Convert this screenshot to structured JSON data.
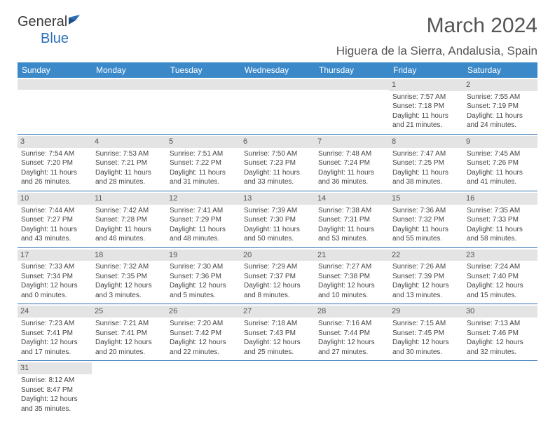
{
  "logo": {
    "text1": "General",
    "text2": "Blue"
  },
  "title": "March 2024",
  "location": "Higuera de la Sierra, Andalusia, Spain",
  "colors": {
    "header_bg": "#3b89c9",
    "header_text": "#ffffff",
    "daynum_bg": "#e4e4e4",
    "border": "#2d6fb5",
    "text": "#444444",
    "logo_blue": "#2d6fb5"
  },
  "day_headers": [
    "Sunday",
    "Monday",
    "Tuesday",
    "Wednesday",
    "Thursday",
    "Friday",
    "Saturday"
  ],
  "weeks": [
    [
      null,
      null,
      null,
      null,
      null,
      {
        "n": "1",
        "l1": "Sunrise: 7:57 AM",
        "l2": "Sunset: 7:18 PM",
        "l3": "Daylight: 11 hours",
        "l4": "and 21 minutes."
      },
      {
        "n": "2",
        "l1": "Sunrise: 7:55 AM",
        "l2": "Sunset: 7:19 PM",
        "l3": "Daylight: 11 hours",
        "l4": "and 24 minutes."
      }
    ],
    [
      {
        "n": "3",
        "l1": "Sunrise: 7:54 AM",
        "l2": "Sunset: 7:20 PM",
        "l3": "Daylight: 11 hours",
        "l4": "and 26 minutes."
      },
      {
        "n": "4",
        "l1": "Sunrise: 7:53 AM",
        "l2": "Sunset: 7:21 PM",
        "l3": "Daylight: 11 hours",
        "l4": "and 28 minutes."
      },
      {
        "n": "5",
        "l1": "Sunrise: 7:51 AM",
        "l2": "Sunset: 7:22 PM",
        "l3": "Daylight: 11 hours",
        "l4": "and 31 minutes."
      },
      {
        "n": "6",
        "l1": "Sunrise: 7:50 AM",
        "l2": "Sunset: 7:23 PM",
        "l3": "Daylight: 11 hours",
        "l4": "and 33 minutes."
      },
      {
        "n": "7",
        "l1": "Sunrise: 7:48 AM",
        "l2": "Sunset: 7:24 PM",
        "l3": "Daylight: 11 hours",
        "l4": "and 36 minutes."
      },
      {
        "n": "8",
        "l1": "Sunrise: 7:47 AM",
        "l2": "Sunset: 7:25 PM",
        "l3": "Daylight: 11 hours",
        "l4": "and 38 minutes."
      },
      {
        "n": "9",
        "l1": "Sunrise: 7:45 AM",
        "l2": "Sunset: 7:26 PM",
        "l3": "Daylight: 11 hours",
        "l4": "and 41 minutes."
      }
    ],
    [
      {
        "n": "10",
        "l1": "Sunrise: 7:44 AM",
        "l2": "Sunset: 7:27 PM",
        "l3": "Daylight: 11 hours",
        "l4": "and 43 minutes."
      },
      {
        "n": "11",
        "l1": "Sunrise: 7:42 AM",
        "l2": "Sunset: 7:28 PM",
        "l3": "Daylight: 11 hours",
        "l4": "and 46 minutes."
      },
      {
        "n": "12",
        "l1": "Sunrise: 7:41 AM",
        "l2": "Sunset: 7:29 PM",
        "l3": "Daylight: 11 hours",
        "l4": "and 48 minutes."
      },
      {
        "n": "13",
        "l1": "Sunrise: 7:39 AM",
        "l2": "Sunset: 7:30 PM",
        "l3": "Daylight: 11 hours",
        "l4": "and 50 minutes."
      },
      {
        "n": "14",
        "l1": "Sunrise: 7:38 AM",
        "l2": "Sunset: 7:31 PM",
        "l3": "Daylight: 11 hours",
        "l4": "and 53 minutes."
      },
      {
        "n": "15",
        "l1": "Sunrise: 7:36 AM",
        "l2": "Sunset: 7:32 PM",
        "l3": "Daylight: 11 hours",
        "l4": "and 55 minutes."
      },
      {
        "n": "16",
        "l1": "Sunrise: 7:35 AM",
        "l2": "Sunset: 7:33 PM",
        "l3": "Daylight: 11 hours",
        "l4": "and 58 minutes."
      }
    ],
    [
      {
        "n": "17",
        "l1": "Sunrise: 7:33 AM",
        "l2": "Sunset: 7:34 PM",
        "l3": "Daylight: 12 hours",
        "l4": "and 0 minutes."
      },
      {
        "n": "18",
        "l1": "Sunrise: 7:32 AM",
        "l2": "Sunset: 7:35 PM",
        "l3": "Daylight: 12 hours",
        "l4": "and 3 minutes."
      },
      {
        "n": "19",
        "l1": "Sunrise: 7:30 AM",
        "l2": "Sunset: 7:36 PM",
        "l3": "Daylight: 12 hours",
        "l4": "and 5 minutes."
      },
      {
        "n": "20",
        "l1": "Sunrise: 7:29 AM",
        "l2": "Sunset: 7:37 PM",
        "l3": "Daylight: 12 hours",
        "l4": "and 8 minutes."
      },
      {
        "n": "21",
        "l1": "Sunrise: 7:27 AM",
        "l2": "Sunset: 7:38 PM",
        "l3": "Daylight: 12 hours",
        "l4": "and 10 minutes."
      },
      {
        "n": "22",
        "l1": "Sunrise: 7:26 AM",
        "l2": "Sunset: 7:39 PM",
        "l3": "Daylight: 12 hours",
        "l4": "and 13 minutes."
      },
      {
        "n": "23",
        "l1": "Sunrise: 7:24 AM",
        "l2": "Sunset: 7:40 PM",
        "l3": "Daylight: 12 hours",
        "l4": "and 15 minutes."
      }
    ],
    [
      {
        "n": "24",
        "l1": "Sunrise: 7:23 AM",
        "l2": "Sunset: 7:41 PM",
        "l3": "Daylight: 12 hours",
        "l4": "and 17 minutes."
      },
      {
        "n": "25",
        "l1": "Sunrise: 7:21 AM",
        "l2": "Sunset: 7:41 PM",
        "l3": "Daylight: 12 hours",
        "l4": "and 20 minutes."
      },
      {
        "n": "26",
        "l1": "Sunrise: 7:20 AM",
        "l2": "Sunset: 7:42 PM",
        "l3": "Daylight: 12 hours",
        "l4": "and 22 minutes."
      },
      {
        "n": "27",
        "l1": "Sunrise: 7:18 AM",
        "l2": "Sunset: 7:43 PM",
        "l3": "Daylight: 12 hours",
        "l4": "and 25 minutes."
      },
      {
        "n": "28",
        "l1": "Sunrise: 7:16 AM",
        "l2": "Sunset: 7:44 PM",
        "l3": "Daylight: 12 hours",
        "l4": "and 27 minutes."
      },
      {
        "n": "29",
        "l1": "Sunrise: 7:15 AM",
        "l2": "Sunset: 7:45 PM",
        "l3": "Daylight: 12 hours",
        "l4": "and 30 minutes."
      },
      {
        "n": "30",
        "l1": "Sunrise: 7:13 AM",
        "l2": "Sunset: 7:46 PM",
        "l3": "Daylight: 12 hours",
        "l4": "and 32 minutes."
      }
    ],
    [
      {
        "n": "31",
        "l1": "Sunrise: 8:12 AM",
        "l2": "Sunset: 8:47 PM",
        "l3": "Daylight: 12 hours",
        "l4": "and 35 minutes."
      },
      null,
      null,
      null,
      null,
      null,
      null
    ]
  ]
}
